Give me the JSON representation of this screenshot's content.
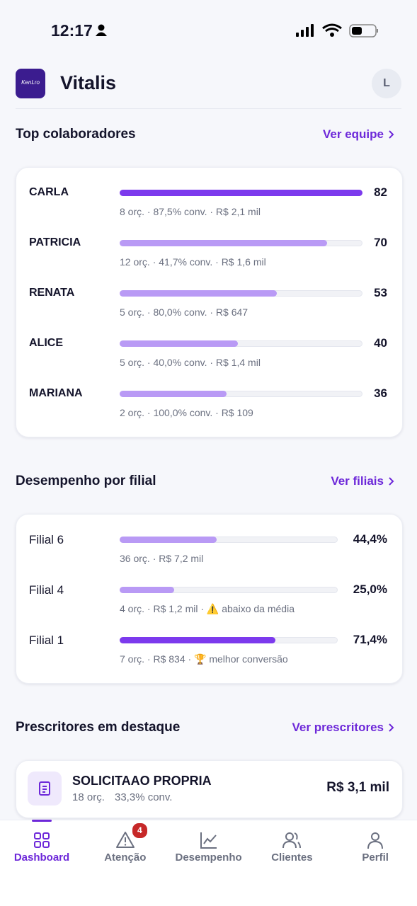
{
  "status_bar": {
    "time": "12:17"
  },
  "header": {
    "logo": "KenLro",
    "title": "Vitalis",
    "avatar": "L"
  },
  "top_collaborators": {
    "title": "Top colaboradores",
    "link": "Ver equipe",
    "items": [
      {
        "name": "CARLA",
        "score": 82,
        "details": "8 orç. · 87,5% conv. · R$ 2,1 mil",
        "color": "#7c3aed"
      },
      {
        "name": "PATRICIA",
        "score": 70,
        "details": "12 orç. · 41,7% conv. · R$ 1,6 mil",
        "color": "#b99af5"
      },
      {
        "name": "RENATA",
        "score": 53,
        "details": "5 orç. · 80,0% conv. · R$ 647",
        "color": "#b99af5"
      },
      {
        "name": "ALICE",
        "score": 40,
        "details": "5 orç. · 40,0% conv. · R$ 1,4 mil",
        "color": "#b99af5"
      },
      {
        "name": "MARIANA",
        "score": 36,
        "details": "2 orç. · 100,0% conv. · R$ 109",
        "color": "#b99af5"
      }
    ]
  },
  "branches": {
    "title": "Desempenho por filial",
    "link": "Ver filiais",
    "items": [
      {
        "name": "Filial 6",
        "value": 44.4,
        "value_label": "44,4%",
        "details": "36 orç. · R$ 7,2 mil",
        "color": "#b99af5"
      },
      {
        "name": "Filial 4",
        "value": 25.0,
        "value_label": "25,0%",
        "details": "4 orç. · R$ 1,2 mil · ⚠️ abaixo da média",
        "color": "#b99af5"
      },
      {
        "name": "Filial 1",
        "value": 71.4,
        "value_label": "71,4%",
        "details": "7 orç. · R$ 834 · 🏆 melhor conversão",
        "color": "#7c3aed"
      }
    ]
  },
  "prescribers": {
    "title": "Prescritores em destaque",
    "link": "Ver prescritores",
    "items": [
      {
        "name": "SOLICITAAO PROPRIA",
        "orders": "18 orç.",
        "conversion": "33,3% conv.",
        "amount": "R$ 3,1 mil"
      }
    ]
  },
  "nav": {
    "items": [
      {
        "label": "Dashboard",
        "active": true
      },
      {
        "label": "Atenção",
        "badge": 4
      },
      {
        "label": "Desempenho"
      },
      {
        "label": "Clientes"
      },
      {
        "label": "Perfil"
      }
    ]
  }
}
